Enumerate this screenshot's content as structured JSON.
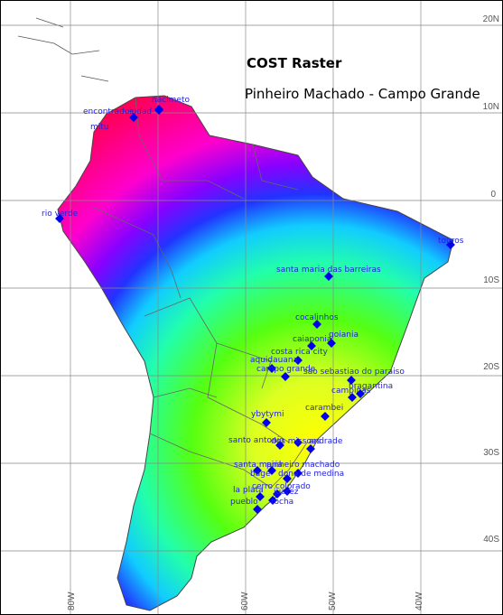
{
  "title": "COST Raster",
  "subtitle": "Pinheiro Machado - Campo Grande",
  "colors": {
    "grid": "#888888",
    "border": "#555555",
    "marker": "#0000ee",
    "label": "#2222dd"
  },
  "lat_labels": [
    "20N",
    "10N",
    "0",
    "10S",
    "20S",
    "30S",
    "40S"
  ],
  "lon_labels": [
    "80W",
    "60W",
    "50W",
    "40W"
  ],
  "cities": [
    {
      "name": "encontrados",
      "marker": true
    },
    {
      "name": "ciudad",
      "marker": true
    },
    {
      "name": "nacimeto",
      "marker": true
    },
    {
      "name": "mitu",
      "marker": false
    },
    {
      "name": "rio verde",
      "marker": true
    },
    {
      "name": "touros",
      "marker": true
    },
    {
      "name": "santa maria das barreiras",
      "marker": true
    },
    {
      "name": "cocalinhos",
      "marker": true
    },
    {
      "name": "caiaponia",
      "marker": true
    },
    {
      "name": "goiania",
      "marker": true
    },
    {
      "name": "costa rica city",
      "marker": true
    },
    {
      "name": "aquidauana",
      "marker": true
    },
    {
      "name": "campo grande",
      "marker": true
    },
    {
      "name": "sao sebastiao do paraiso",
      "marker": true
    },
    {
      "name": "campinas",
      "marker": true
    },
    {
      "name": "bragantina",
      "marker": true
    },
    {
      "name": "carambei",
      "marker": true
    },
    {
      "name": "ybytymi",
      "marker": true
    },
    {
      "name": "santo antonio",
      "marker": true
    },
    {
      "name": "dos missoes",
      "marker": true
    },
    {
      "name": "andrade",
      "marker": true
    },
    {
      "name": "santa maria",
      "marker": true
    },
    {
      "name": "pinheiro machado",
      "marker": true
    },
    {
      "name": "bagé",
      "marker": true
    },
    {
      "name": "dona de medina",
      "marker": true
    },
    {
      "name": "cerro colorado",
      "marker": true
    },
    {
      "name": "la plata",
      "marker": true
    },
    {
      "name": "juarez",
      "marker": true
    },
    {
      "name": "pueblo",
      "marker": true
    },
    {
      "name": "rocha",
      "marker": true
    }
  ]
}
